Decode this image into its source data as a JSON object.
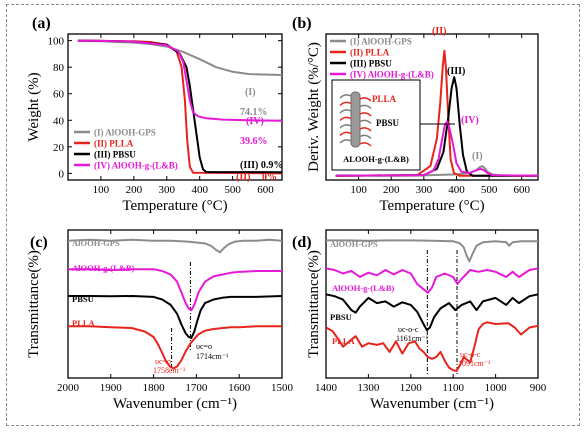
{
  "chart_data": [
    {
      "panel": "(a)",
      "type": "line",
      "xlabel": "Temperature (°C)",
      "ylabel": "Weight (%)",
      "xlim": [
        0,
        650
      ],
      "ylim": [
        -5,
        105
      ],
      "xticks": [
        100,
        200,
        300,
        400,
        500,
        600
      ],
      "yticks": [
        0,
        20,
        40,
        60,
        80,
        100
      ],
      "legend_position": "bottom-left",
      "series": [
        {
          "name": "(I) AlOOH-GPS",
          "color": "#8c8c8c",
          "x": [
            30,
            100,
            200,
            250,
            300,
            350,
            400,
            450,
            500,
            550,
            650
          ],
          "y": [
            100,
            99.6,
            98.5,
            97.5,
            95.5,
            91.5,
            86,
            80,
            76.5,
            74.8,
            74.1
          ]
        },
        {
          "name": "(II) PLLA",
          "color": "#e8231c",
          "x": [
            30,
            100,
            200,
            250,
            300,
            330,
            345,
            355,
            362,
            370,
            380,
            650
          ],
          "y": [
            100,
            99.8,
            99.5,
            99,
            97,
            92,
            80,
            55,
            25,
            5,
            0.5,
            0
          ]
        },
        {
          "name": "(III) PBSU",
          "color": "#000000",
          "x": [
            30,
            100,
            200,
            300,
            340,
            360,
            370,
            380,
            390,
            400,
            410,
            420,
            650
          ],
          "y": [
            100,
            99.8,
            99.3,
            97,
            90,
            80,
            66,
            48,
            30,
            12,
            3,
            1,
            0.9
          ]
        },
        {
          "name": "(IV) AlOOH-g-(L&B)",
          "color": "#e619d8",
          "x": [
            30,
            100,
            200,
            300,
            335,
            350,
            360,
            370,
            380,
            395,
            420,
            470,
            550,
            650
          ],
          "y": [
            100,
            99.8,
            99.3,
            96.5,
            92,
            84,
            70,
            55,
            46,
            43,
            41.5,
            40.5,
            40,
            39.6
          ]
        }
      ],
      "annotations": [
        {
          "text": "(I)",
          "color": "#8c8c8c"
        },
        {
          "text": "74.1%",
          "color": "#8c8c8c"
        },
        {
          "text": "(IV)",
          "color": "#e619d8"
        },
        {
          "text": "39.6%",
          "color": "#e619d8"
        },
        {
          "text": "(III) 0.9%",
          "color": "#000000"
        },
        {
          "text": "(II)",
          "color": "#e8231c"
        },
        {
          "text": "0%",
          "color": "#e8231c"
        }
      ]
    },
    {
      "panel": "(b)",
      "type": "line",
      "xlabel": "Temperature (°C)",
      "ylabel": "Deriv. Weight (%/°C)",
      "xlim": [
        0,
        650
      ],
      "ylim": [
        0,
        1.05
      ],
      "xticks": [
        100,
        200,
        300,
        400,
        500,
        600
      ],
      "yticks": [],
      "legend_position": "top-left",
      "series": [
        {
          "name": "(I) AlOOH-GPS",
          "color": "#8c8c8c",
          "x": [
            30,
            200,
            300,
            400,
            440,
            460,
            470,
            478,
            485,
            495,
            510,
            540,
            650
          ],
          "y": [
            0.03,
            0.03,
            0.033,
            0.04,
            0.05,
            0.07,
            0.09,
            0.1,
            0.09,
            0.06,
            0.04,
            0.03,
            0.03
          ]
        },
        {
          "name": "(II) PLLA",
          "color": "#e8231c",
          "x": [
            30,
            280,
            320,
            340,
            350,
            358,
            363,
            368,
            375,
            382,
            392,
            410,
            650
          ],
          "y": [
            0.03,
            0.035,
            0.1,
            0.3,
            0.55,
            0.82,
            0.93,
            0.8,
            0.45,
            0.15,
            0.05,
            0.03,
            0.03
          ]
        },
        {
          "name": "(III) PBSU",
          "color": "#000000",
          "x": [
            30,
            300,
            340,
            360,
            375,
            385,
            393,
            400,
            410,
            420,
            432,
            450,
            650
          ],
          "y": [
            0.03,
            0.035,
            0.08,
            0.2,
            0.45,
            0.66,
            0.74,
            0.66,
            0.4,
            0.18,
            0.06,
            0.03,
            0.03
          ]
        },
        {
          "name": "(IV) AlOOH-g-(L&B)",
          "color": "#e619d8",
          "x": [
            30,
            300,
            330,
            345,
            355,
            365,
            372,
            380,
            390,
            400,
            415,
            440,
            460,
            475,
            485,
            495,
            510,
            650
          ],
          "y": [
            0.03,
            0.035,
            0.07,
            0.15,
            0.28,
            0.4,
            0.42,
            0.36,
            0.25,
            0.12,
            0.06,
            0.05,
            0.07,
            0.08,
            0.07,
            0.05,
            0.035,
            0.03
          ]
        }
      ],
      "annotations": [
        {
          "text": "(II)",
          "color": "#e8231c"
        },
        {
          "text": "(III)",
          "color": "#000000"
        },
        {
          "text": "(IV)",
          "color": "#e619d8"
        },
        {
          "text": "(I)",
          "color": "#8c8c8c"
        }
      ],
      "inset": {
        "labels": [
          "PLLA",
          "PBSU",
          "ALOOH-g-(L&B)"
        ]
      }
    },
    {
      "panel": "(c)",
      "type": "line",
      "xlabel": "Wavenumber (cm⁻¹)",
      "ylabel": "Transmittance(%)",
      "xlim": [
        2000,
        1500
      ],
      "xticks": [
        2000,
        1900,
        1800,
        1700,
        1600,
        1500
      ],
      "yticks": [],
      "series": [
        {
          "name": "AlOOH-GPS",
          "color": "#8c8c8c",
          "x": [
            2000,
            1950,
            1900,
            1850,
            1800,
            1760,
            1720,
            1700,
            1680,
            1665,
            1655,
            1645,
            1635,
            1625,
            1610,
            1590,
            1560,
            1530,
            1500
          ],
          "y": [
            8.3,
            8.35,
            8.3,
            8.35,
            8.3,
            8.3,
            8.25,
            8.2,
            8.15,
            8.0,
            7.8,
            7.65,
            7.9,
            8.1,
            8.25,
            8.3,
            8.3,
            8.35,
            8.3
          ]
        },
        {
          "name": "AlOOH-g-(L&B)",
          "color": "#e619d8",
          "x": [
            2000,
            1950,
            1900,
            1850,
            1800,
            1780,
            1760,
            1745,
            1735,
            1725,
            1718,
            1712,
            1705,
            1695,
            1680,
            1660,
            1640,
            1620,
            1600,
            1560,
            1530,
            1500
          ],
          "y": [
            6.7,
            6.7,
            6.65,
            6.7,
            6.7,
            6.6,
            6.4,
            6.0,
            5.4,
            4.8,
            4.5,
            4.4,
            4.7,
            5.4,
            6.0,
            6.3,
            6.4,
            6.5,
            6.55,
            6.6,
            6.6,
            6.6
          ]
        },
        {
          "name": "PBSU",
          "color": "#000000",
          "x": [
            2000,
            1950,
            1900,
            1850,
            1800,
            1780,
            1760,
            1745,
            1735,
            1725,
            1718,
            1712,
            1705,
            1698,
            1690,
            1680,
            1660,
            1640,
            1620,
            1600,
            1560,
            1500
          ],
          "y": [
            5.2,
            5.2,
            5.18,
            5.2,
            5.15,
            5.0,
            4.7,
            4.2,
            3.6,
            3.1,
            2.9,
            2.85,
            3.2,
            3.8,
            4.4,
            4.8,
            5.0,
            5.1,
            5.15,
            5.15,
            5.15,
            5.2
          ]
        },
        {
          "name": "PLLA",
          "color": "#e8231c",
          "x": [
            2000,
            1950,
            1900,
            1850,
            1820,
            1800,
            1790,
            1780,
            1770,
            1760,
            1752,
            1745,
            1735,
            1725,
            1715,
            1705,
            1695,
            1680,
            1660,
            1640,
            1620,
            1600,
            1560,
            1500
          ],
          "y": [
            3.5,
            3.5,
            3.45,
            3.4,
            3.2,
            2.9,
            2.5,
            2.0,
            1.5,
            1.2,
            1.15,
            1.25,
            1.6,
            2.1,
            2.5,
            2.8,
            3.05,
            3.25,
            3.35,
            3.4,
            3.45,
            3.45,
            3.5,
            3.5
          ]
        }
      ],
      "annotations": [
        {
          "text": "υc=o",
          "color": "#e8231c"
        },
        {
          "text": "1758cm⁻¹",
          "color": "#e8231c"
        },
        {
          "text": "υc=o",
          "color": "#000000"
        },
        {
          "text": "1714cm⁻¹",
          "color": "#000000"
        }
      ]
    },
    {
      "panel": "(d)",
      "type": "line",
      "xlabel": "Wavenumber (cm⁻¹)",
      "ylabel": "Transmittance(%)",
      "xlim": [
        1400,
        900
      ],
      "xticks": [
        1400,
        1300,
        1200,
        1100,
        1000,
        900
      ],
      "yticks": [],
      "series": [
        {
          "name": "AlOOH-GPS",
          "color": "#8c8c8c",
          "x": [
            1400,
            1350,
            1300,
            1250,
            1200,
            1150,
            1100,
            1085,
            1075,
            1068,
            1062,
            1055,
            1045,
            1030,
            1000,
            975,
            968,
            960,
            940,
            900
          ],
          "y": [
            8.3,
            8.3,
            8.28,
            8.3,
            8.3,
            8.28,
            8.25,
            8.15,
            7.9,
            7.4,
            7.1,
            7.5,
            8.0,
            8.2,
            8.25,
            8.2,
            8.0,
            8.2,
            8.25,
            8.25
          ]
        },
        {
          "name": "AlOOH-g-(L&B)",
          "color": "#e619d8",
          "x": [
            1400,
            1380,
            1360,
            1340,
            1320,
            1300,
            1280,
            1260,
            1240,
            1220,
            1200,
            1185,
            1170,
            1160,
            1150,
            1140,
            1120,
            1100,
            1090,
            1080,
            1060,
            1040,
            1020,
            1000,
            975,
            960,
            945,
            920,
            900
          ],
          "y": [
            6.7,
            6.6,
            6.4,
            6.55,
            6.2,
            6.45,
            6.3,
            6.6,
            6.35,
            6.6,
            6.4,
            5.8,
            5.5,
            5.3,
            5.6,
            6.2,
            6.4,
            6.2,
            5.8,
            6.1,
            6.6,
            6.5,
            6.6,
            6.5,
            6.2,
            6.5,
            6.2,
            6.6,
            6.7
          ]
        },
        {
          "name": "PBSU",
          "color": "#000000",
          "x": [
            1400,
            1380,
            1360,
            1340,
            1330,
            1320,
            1300,
            1280,
            1260,
            1240,
            1220,
            1200,
            1185,
            1170,
            1162,
            1155,
            1145,
            1130,
            1110,
            1095,
            1080,
            1060,
            1045,
            1030,
            1000,
            975,
            960,
            945,
            920,
            900
          ],
          "y": [
            5.2,
            5.1,
            4.9,
            4.3,
            4.15,
            4.5,
            5.0,
            4.7,
            4.8,
            4.5,
            4.75,
            4.6,
            4.2,
            3.5,
            3.15,
            3.3,
            3.9,
            4.4,
            4.7,
            4.3,
            4.6,
            4.8,
            4.3,
            4.8,
            5.0,
            4.6,
            5.0,
            4.7,
            5.1,
            5.2
          ]
        },
        {
          "name": "PLLA",
          "color": "#e8231c",
          "x": [
            1400,
            1385,
            1370,
            1360,
            1345,
            1330,
            1315,
            1300,
            1280,
            1265,
            1250,
            1235,
            1220,
            1205,
            1190,
            1180,
            1170,
            1160,
            1150,
            1140,
            1130,
            1120,
            1110,
            1100,
            1092,
            1085,
            1075,
            1060,
            1050,
            1040,
            1030,
            1020,
            1000,
            970,
            955,
            940,
            920,
            900
          ],
          "y": [
            3.3,
            3.1,
            2.6,
            2.2,
            2.5,
            2.8,
            2.2,
            2.4,
            2.3,
            2.4,
            1.9,
            2.5,
            1.8,
            2.4,
            2.5,
            2.1,
            1.9,
            1.6,
            1.5,
            1.6,
            1.9,
            1.4,
            1.0,
            0.85,
            0.8,
            1.1,
            1.6,
            1.3,
            2.2,
            3.2,
            3.5,
            3.6,
            3.5,
            3.55,
            3.3,
            2.9,
            3.3,
            3.4
          ]
        }
      ],
      "annotations": [
        {
          "text": "υc-o-c",
          "color": "#000000"
        },
        {
          "text": "1161cm⁻¹",
          "color": "#000000"
        },
        {
          "text": "υc-o-c",
          "color": "#e8231c"
        },
        {
          "text": "1091cm⁻¹",
          "color": "#e8231c"
        }
      ]
    }
  ]
}
